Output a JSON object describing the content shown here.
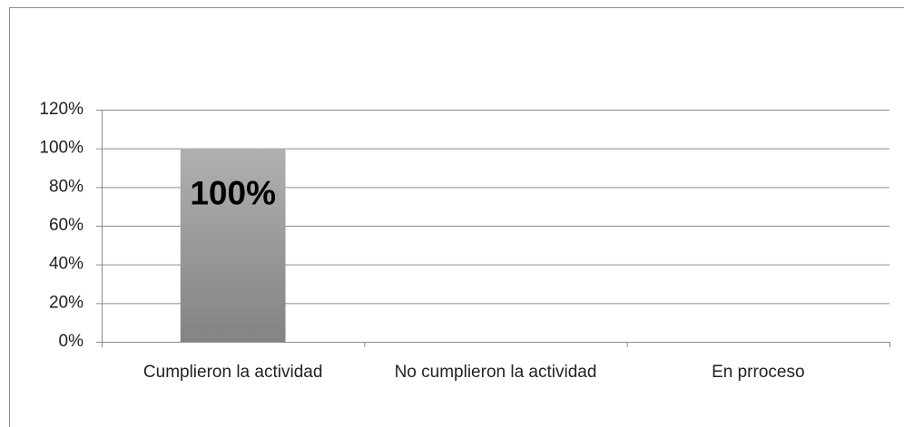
{
  "chart_data": {
    "type": "bar",
    "categories": [
      "Cumplieron la actividad",
      "No cumplieron la actividad",
      "En prroceso"
    ],
    "values": [
      100,
      0,
      0
    ],
    "value_labels": [
      "100%",
      null,
      null
    ],
    "color": "#999999",
    "ylim": [
      0,
      120
    ],
    "yticks": [
      {
        "value": 0,
        "label": "0%"
      },
      {
        "value": 20,
        "label": "20%"
      },
      {
        "value": 40,
        "label": "40%"
      },
      {
        "value": 60,
        "label": "60%"
      },
      {
        "value": 80,
        "label": "80%"
      },
      {
        "value": 100,
        "label": "100%"
      },
      {
        "value": 120,
        "label": "120%"
      }
    ],
    "grid": true
  }
}
